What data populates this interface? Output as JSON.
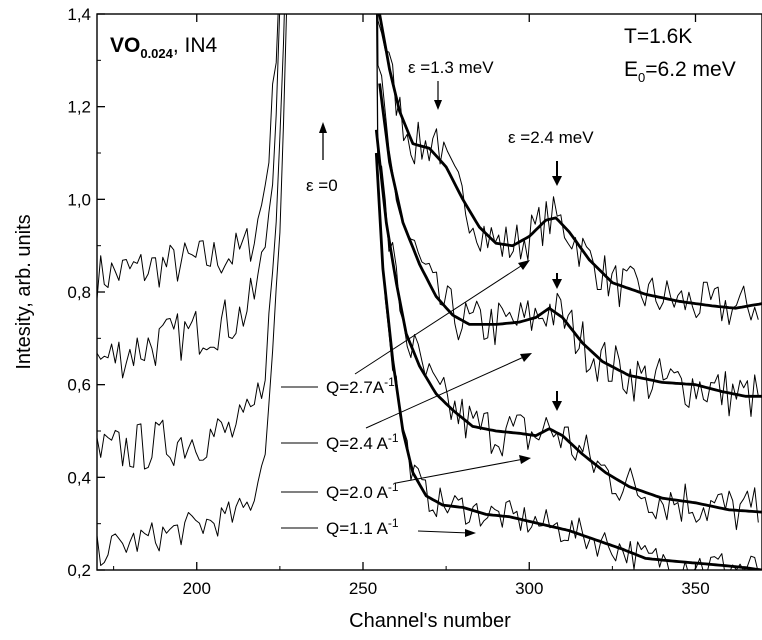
{
  "chart_data": {
    "type": "line",
    "xlabel": "Channel's number",
    "ylabel": "Intesity, arb. units",
    "xlim": [
      170,
      370
    ],
    "ylim": [
      0.2,
      1.4
    ],
    "x_ticks": [
      200,
      250,
      300,
      350
    ],
    "x_tick_labels": [
      "200",
      "250",
      "300",
      "350"
    ],
    "y_ticks": [
      0.2,
      0.4,
      0.6,
      0.8,
      1.0,
      1.2,
      1.4
    ],
    "y_tick_labels": [
      "0,2",
      "0,4",
      "0,6",
      "0,8",
      "1,0",
      "1,2",
      "1,4"
    ],
    "grid": false,
    "sample": {
      "main": "VO",
      "sub": "0.024",
      "rest": ", IN4"
    },
    "conditions": {
      "temp": "T=1.6K",
      "energy_prefix": "E",
      "energy_sub": "0",
      "energy_rest": "=6.2 meV"
    },
    "annotations": {
      "eps_zero": "ε =0",
      "eps_1_3": "ε =1.3 meV",
      "eps_2_4": "ε =2.4 meV"
    },
    "series": [
      {
        "q_label": "Q=2.7A",
        "q_exp": "-1",
        "baseline": 0.835,
        "wing": 0.9,
        "peak_center": 307,
        "peak_amp": 0.08,
        "extra_peak_center": 272,
        "extra_peak_amp": 0.05,
        "tail": [
          [
            255,
            1.4
          ],
          [
            258,
            1.28
          ],
          [
            261,
            1.19
          ],
          [
            265,
            1.12
          ],
          [
            270,
            1.11
          ],
          [
            275,
            1.07
          ],
          [
            280,
            1.0
          ],
          [
            285,
            0.94
          ],
          [
            290,
            0.905
          ],
          [
            295,
            0.9
          ],
          [
            300,
            0.92
          ],
          [
            305,
            0.955
          ],
          [
            308,
            0.96
          ],
          [
            312,
            0.93
          ],
          [
            318,
            0.87
          ],
          [
            325,
            0.82
          ],
          [
            335,
            0.795
          ],
          [
            345,
            0.78
          ],
          [
            355,
            0.77
          ],
          [
            362,
            0.765
          ],
          [
            370,
            0.775
          ]
        ],
        "noise_amp": 0.05
      },
      {
        "q_label": "Q=2.4 A",
        "q_exp": "-1",
        "baseline": 0.65,
        "wing": 0.78,
        "peak_center": 307,
        "peak_amp": 0.05,
        "tail": [
          [
            255,
            1.25
          ],
          [
            258,
            1.08
          ],
          [
            262,
            0.95
          ],
          [
            267,
            0.86
          ],
          [
            272,
            0.79
          ],
          [
            277,
            0.75
          ],
          [
            282,
            0.73
          ],
          [
            290,
            0.73
          ],
          [
            297,
            0.735
          ],
          [
            302,
            0.745
          ],
          [
            306,
            0.765
          ],
          [
            310,
            0.745
          ],
          [
            316,
            0.69
          ],
          [
            322,
            0.65
          ],
          [
            330,
            0.62
          ],
          [
            340,
            0.605
          ],
          [
            350,
            0.6
          ],
          [
            358,
            0.585
          ],
          [
            365,
            0.575
          ],
          [
            370,
            0.575
          ]
        ],
        "noise_amp": 0.055
      },
      {
        "q_label": "Q=2.0 A",
        "q_exp": "-1",
        "baseline": 0.45,
        "wing": 0.52,
        "peak_center": 307,
        "peak_amp": 0.04,
        "tail": [
          [
            254,
            1.15
          ],
          [
            257,
            0.95
          ],
          [
            260,
            0.82
          ],
          [
            263,
            0.71
          ],
          [
            267,
            0.64
          ],
          [
            272,
            0.58
          ],
          [
            277,
            0.545
          ],
          [
            283,
            0.51
          ],
          [
            290,
            0.5
          ],
          [
            297,
            0.495
          ],
          [
            302,
            0.49
          ],
          [
            306,
            0.505
          ],
          [
            310,
            0.49
          ],
          [
            316,
            0.45
          ],
          [
            323,
            0.41
          ],
          [
            330,
            0.38
          ],
          [
            340,
            0.355
          ],
          [
            350,
            0.345
          ],
          [
            360,
            0.33
          ],
          [
            370,
            0.325
          ]
        ],
        "noise_amp": 0.055
      },
      {
        "q_label": "Q=1.1 A",
        "q_exp": "-1",
        "baseline": 0.24,
        "wing": 0.35,
        "peak_center": 307,
        "peak_amp": 0.0,
        "tail": [
          [
            254,
            1.1
          ],
          [
            256,
            0.85
          ],
          [
            259,
            0.65
          ],
          [
            262,
            0.5
          ],
          [
            265,
            0.41
          ],
          [
            269,
            0.36
          ],
          [
            274,
            0.34
          ],
          [
            280,
            0.335
          ],
          [
            287,
            0.32
          ],
          [
            294,
            0.315
          ],
          [
            300,
            0.305
          ],
          [
            306,
            0.295
          ],
          [
            312,
            0.285
          ],
          [
            320,
            0.265
          ],
          [
            328,
            0.245
          ],
          [
            335,
            0.225
          ],
          [
            342,
            0.22
          ],
          [
            350,
            0.215
          ],
          [
            358,
            0.21
          ],
          [
            365,
            0.205
          ],
          [
            370,
            0.2
          ]
        ],
        "noise_amp": 0.035
      }
    ]
  }
}
